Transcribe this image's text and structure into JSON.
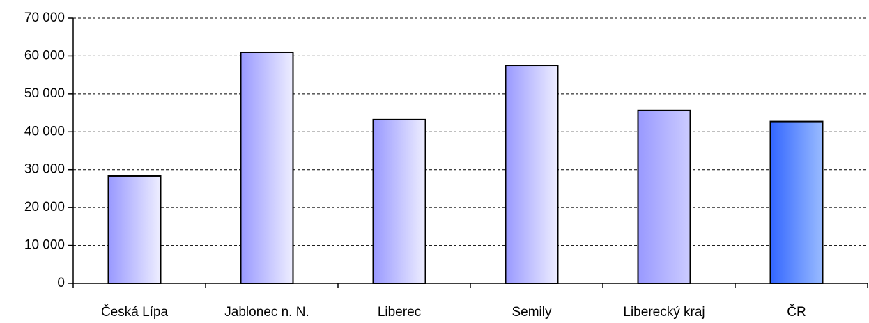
{
  "chart_data": {
    "type": "bar",
    "categories": [
      "Česká Lípa",
      "Jablonec n. N.",
      "Liberec",
      "Semily",
      "Liberecký kraj",
      "ČR"
    ],
    "values": [
      28300,
      61000,
      43200,
      57500,
      45600,
      42700
    ],
    "colors": [
      [
        "#9999ff",
        "#eeeeff"
      ],
      [
        "#9999ff",
        "#eeeeff"
      ],
      [
        "#9999ff",
        "#eeeeff"
      ],
      [
        "#9999ff",
        "#eeeeff"
      ],
      [
        "#9999ff",
        "#ccccff"
      ],
      [
        "#3366ff",
        "#99bbff"
      ]
    ],
    "ylim": [
      0,
      70000
    ],
    "yticks": [
      0,
      {
        "value": 10000,
        "label": "10 000"
      },
      {
        "value": 20000,
        "label": "20 000"
      },
      {
        "value": 30000,
        "label": "30 000"
      },
      {
        "value": 40000,
        "label": "40 000"
      },
      {
        "value": 50000,
        "label": "50 000"
      },
      {
        "value": 60000,
        "label": "60 000"
      },
      {
        "value": 70000,
        "label": "70 000"
      }
    ],
    "grid": true
  }
}
